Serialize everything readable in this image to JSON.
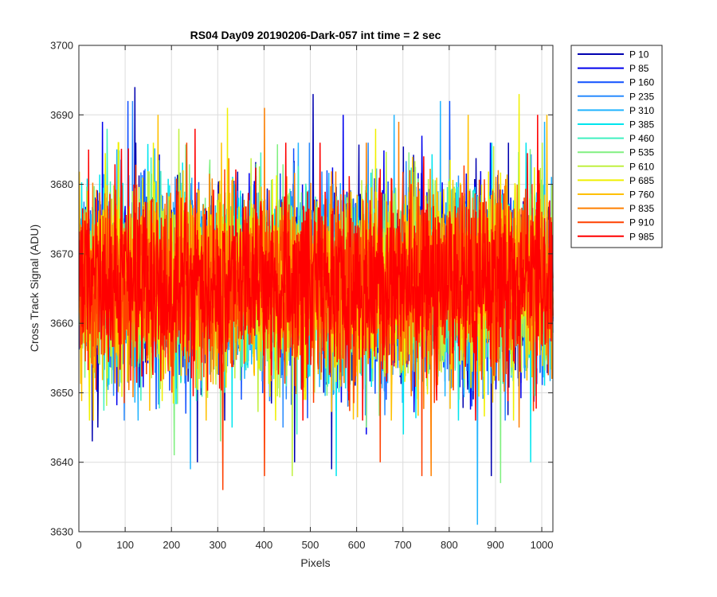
{
  "chart_data": {
    "type": "line",
    "title": "RS04 Day09 20190206-Dark-057 int time = 2 sec",
    "xlabel": "Pixels",
    "ylabel": "Cross Track Signal (ADU)",
    "xlim": [
      0,
      1024
    ],
    "ylim": [
      3630,
      3700
    ],
    "x_ticks": [
      0,
      100,
      200,
      300,
      400,
      500,
      600,
      700,
      800,
      900,
      1000
    ],
    "y_ticks": [
      3630,
      3640,
      3650,
      3660,
      3670,
      3680,
      3690,
      3700
    ],
    "grid": true,
    "legend_position": "outside-top-right",
    "x_count": 1024,
    "series_mean": 3666,
    "series": [
      {
        "name": "P 10",
        "color": "#0000b0",
        "spikes": [
          [
            28,
            3643
          ],
          [
            40,
            3645
          ],
          [
            120,
            3694
          ],
          [
            505,
            3693
          ],
          [
            465,
            3640
          ],
          [
            545,
            3639
          ],
          [
            890,
            3638
          ],
          [
            255,
            3640
          ]
        ]
      },
      {
        "name": "P 85",
        "color": "#0000ee",
        "spikes": [
          [
            50,
            3689
          ],
          [
            140,
            3682
          ],
          [
            570,
            3690
          ],
          [
            740,
            3687
          ],
          [
            620,
            3644
          ]
        ]
      },
      {
        "name": "P 160",
        "color": "#1050ff",
        "spikes": [
          [
            105,
            3692
          ],
          [
            230,
            3647
          ],
          [
            350,
            3649
          ],
          [
            800,
            3692
          ],
          [
            860,
            3646
          ]
        ]
      },
      {
        "name": "P 235",
        "color": "#2a8cff",
        "spikes": [
          [
            115,
            3692
          ],
          [
            440,
            3645
          ],
          [
            580,
            3648
          ],
          [
            920,
            3646
          ]
        ]
      },
      {
        "name": "P 310",
        "color": "#20b4ff",
        "spikes": [
          [
            240,
            3639
          ],
          [
            680,
            3690
          ],
          [
            780,
            3692
          ],
          [
            860,
            3631
          ],
          [
            1005,
            3689
          ]
        ]
      },
      {
        "name": "P 385",
        "color": "#00e5ee",
        "spikes": [
          [
            330,
            3645
          ],
          [
            555,
            3638
          ],
          [
            700,
            3644
          ],
          [
            975,
            3640
          ]
        ]
      },
      {
        "name": "P 460",
        "color": "#40f0c0",
        "spikes": [
          [
            60,
            3688
          ],
          [
            470,
            3644
          ],
          [
            820,
            3649
          ],
          [
            950,
            3682
          ]
        ]
      },
      {
        "name": "P 535",
        "color": "#80f080",
        "spikes": [
          [
            205,
            3641
          ],
          [
            305,
            3643
          ],
          [
            620,
            3645
          ],
          [
            910,
            3637
          ]
        ]
      },
      {
        "name": "P 610",
        "color": "#c0f040",
        "spikes": [
          [
            215,
            3688
          ],
          [
            460,
            3638
          ],
          [
            1000,
            3686
          ]
        ]
      },
      {
        "name": "P 685",
        "color": "#f0f000",
        "spikes": [
          [
            160,
            3686
          ],
          [
            320,
            3691
          ],
          [
            640,
            3688
          ],
          [
            950,
            3693
          ]
        ]
      },
      {
        "name": "P 760",
        "color": "#ffc000",
        "spikes": [
          [
            30,
            3646
          ],
          [
            170,
            3690
          ],
          [
            840,
            3690
          ],
          [
            1010,
            3690
          ]
        ]
      },
      {
        "name": "P 835",
        "color": "#ff8000",
        "spikes": [
          [
            400,
            3691
          ],
          [
            620,
            3686
          ],
          [
            690,
            3689
          ],
          [
            760,
            3638
          ],
          [
            950,
            3645
          ]
        ]
      },
      {
        "name": "P 910",
        "color": "#ff4000",
        "spikes": [
          [
            310,
            3636
          ],
          [
            400,
            3638
          ],
          [
            650,
            3640
          ],
          [
            740,
            3638
          ],
          [
            200,
            3650
          ]
        ]
      },
      {
        "name": "P 985",
        "color": "#ff0000",
        "spikes": [
          [
            20,
            3685
          ],
          [
            250,
            3688
          ],
          [
            500,
            3654
          ],
          [
            520,
            3686
          ],
          [
            990,
            3690
          ]
        ]
      }
    ]
  }
}
